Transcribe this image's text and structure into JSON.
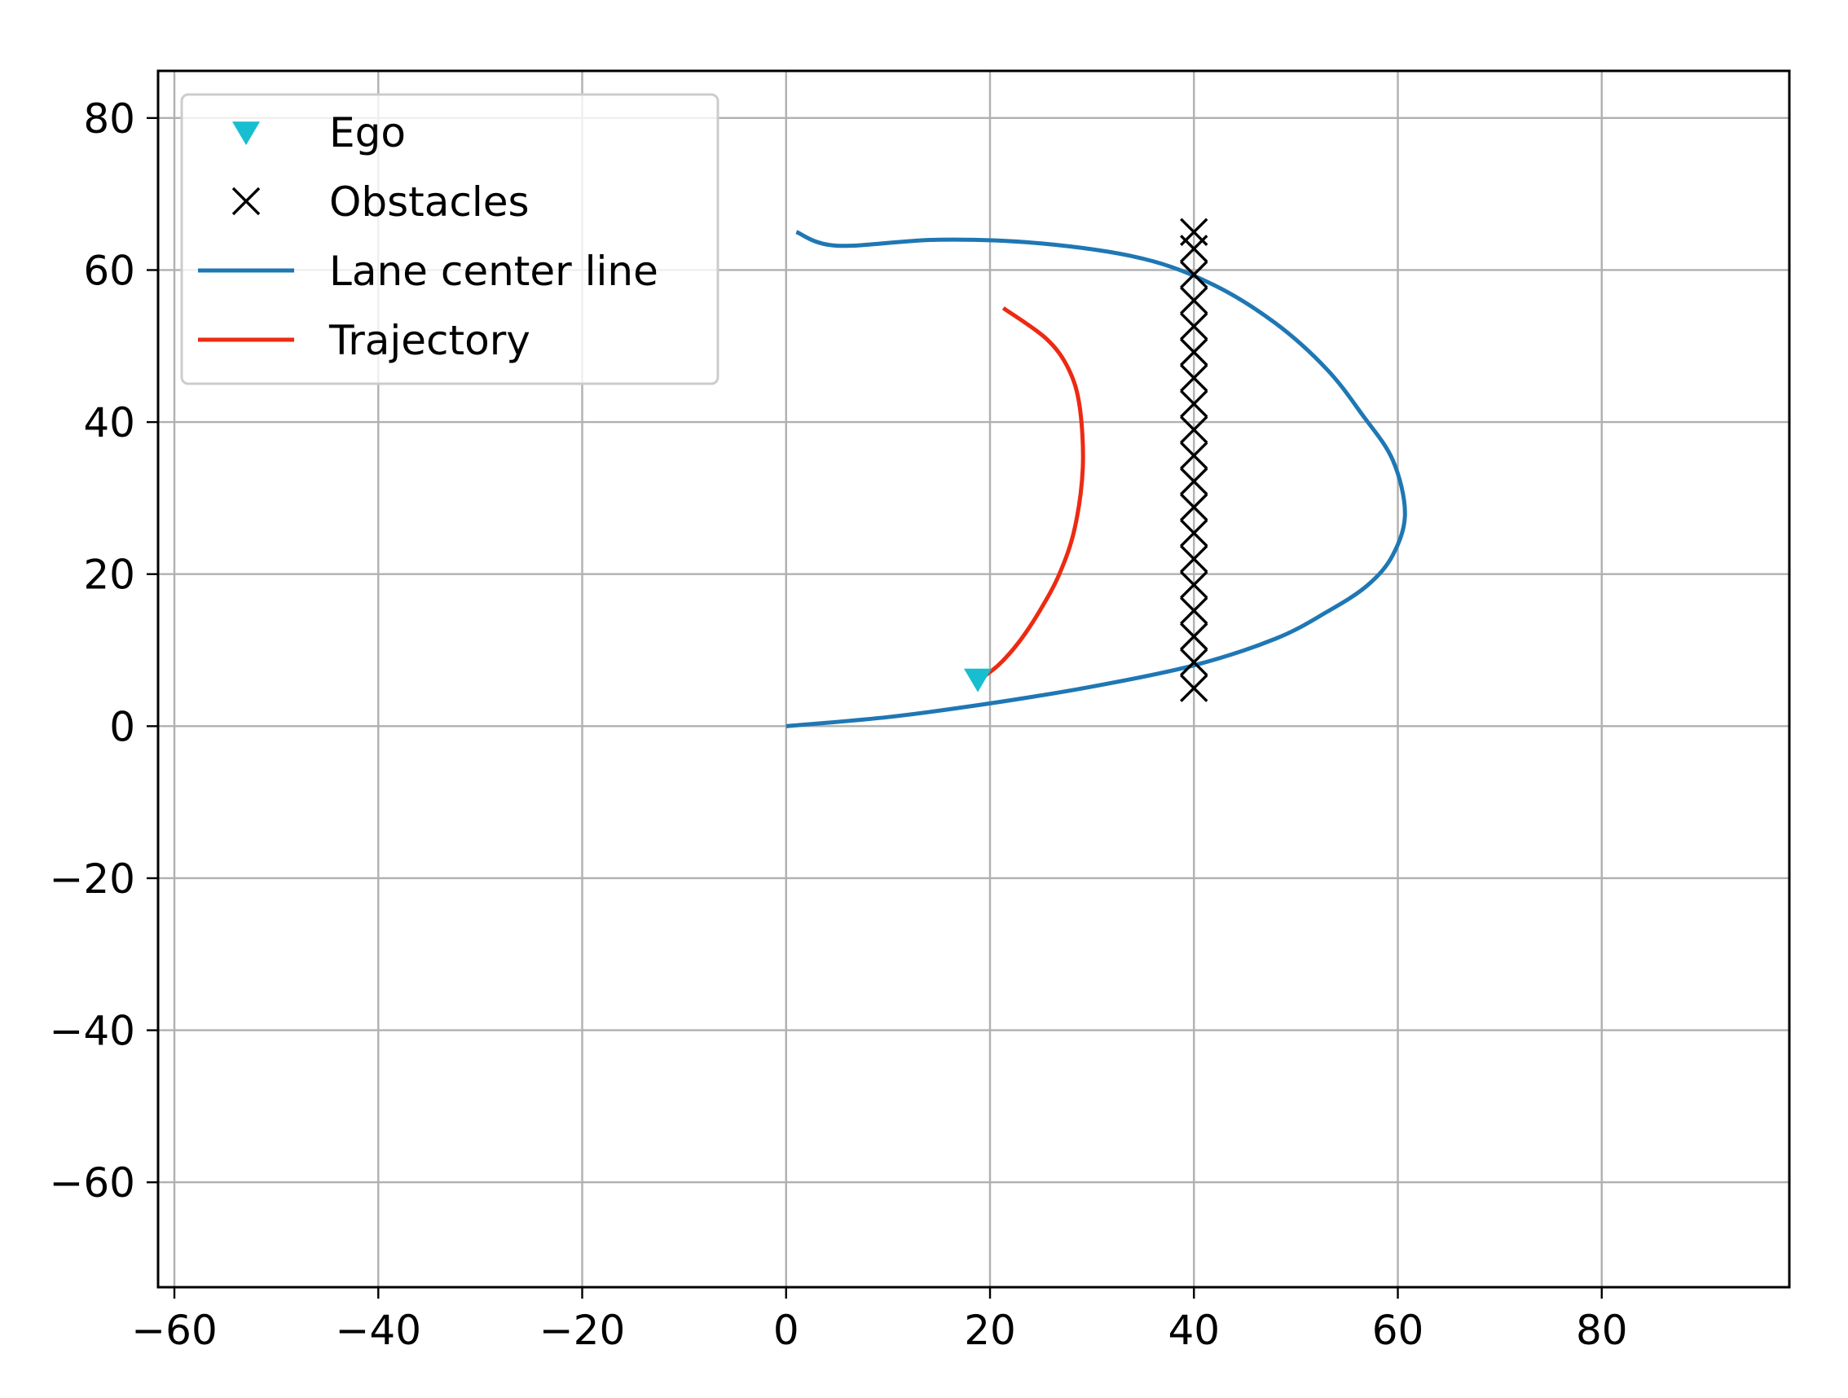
{
  "chart_data": {
    "type": "line",
    "title": "",
    "xlabel": "",
    "ylabel": "",
    "xlim": [
      -61.6,
      98.4
    ],
    "ylim": [
      -73.8,
      86.2
    ],
    "xticks": [
      -60,
      -40,
      -20,
      0,
      20,
      40,
      60,
      80
    ],
    "yticks": [
      -60,
      -40,
      -20,
      0,
      20,
      40,
      60,
      80
    ],
    "xtick_labels": [
      "−60",
      "−40",
      "−20",
      "0",
      "20",
      "40",
      "60",
      "80"
    ],
    "ytick_labels": [
      "−60",
      "−40",
      "−20",
      "0",
      "20",
      "40",
      "60",
      "80"
    ],
    "grid": true,
    "legend_position": "upper-left",
    "series": [
      {
        "name": "Ego",
        "kind": "marker",
        "marker": "triangle-down",
        "color": "#17becf",
        "points": [
          [
            18.8,
            6.2
          ]
        ]
      },
      {
        "name": "Obstacles",
        "kind": "marker",
        "marker": "x",
        "color": "#000000",
        "points": [
          [
            40,
            5
          ],
          [
            40,
            8.4
          ],
          [
            40,
            11.8
          ],
          [
            40,
            15.2
          ],
          [
            40,
            18.6
          ],
          [
            40,
            22
          ],
          [
            40,
            25.4
          ],
          [
            40,
            28.8
          ],
          [
            40,
            32.2
          ],
          [
            40,
            35.6
          ],
          [
            40,
            39
          ],
          [
            40,
            42.4
          ],
          [
            40,
            45.8
          ],
          [
            40,
            49.2
          ],
          [
            40,
            52.6
          ],
          [
            40,
            56
          ],
          [
            40,
            59.4
          ],
          [
            40,
            62.8
          ],
          [
            40,
            65
          ]
        ]
      },
      {
        "name": "Lane center line",
        "kind": "line",
        "color": "#1f77b4",
        "points": [
          [
            0,
            0
          ],
          [
            10,
            1.2
          ],
          [
            20,
            3
          ],
          [
            30,
            5.2
          ],
          [
            40,
            8
          ],
          [
            48,
            11.5
          ],
          [
            53,
            15
          ],
          [
            57,
            18.5
          ],
          [
            59.5,
            22.5
          ],
          [
            60.7,
            28
          ],
          [
            59.5,
            35
          ],
          [
            56.5,
            41
          ],
          [
            53,
            47
          ],
          [
            48,
            53
          ],
          [
            42,
            58
          ],
          [
            35,
            61.5
          ],
          [
            25,
            63.5
          ],
          [
            15,
            64
          ],
          [
            5,
            63.2
          ],
          [
            1,
            65
          ]
        ]
      },
      {
        "name": "Trajectory",
        "kind": "line",
        "color": "#ed2a12",
        "points": [
          [
            18.8,
            6
          ],
          [
            20.8,
            8
          ],
          [
            22.8,
            11
          ],
          [
            24.8,
            15
          ],
          [
            26.8,
            20
          ],
          [
            28.3,
            26
          ],
          [
            29.1,
            34
          ],
          [
            28.8,
            42
          ],
          [
            27.7,
            47
          ],
          [
            25.5,
            51
          ],
          [
            21.3,
            55
          ]
        ]
      }
    ]
  }
}
